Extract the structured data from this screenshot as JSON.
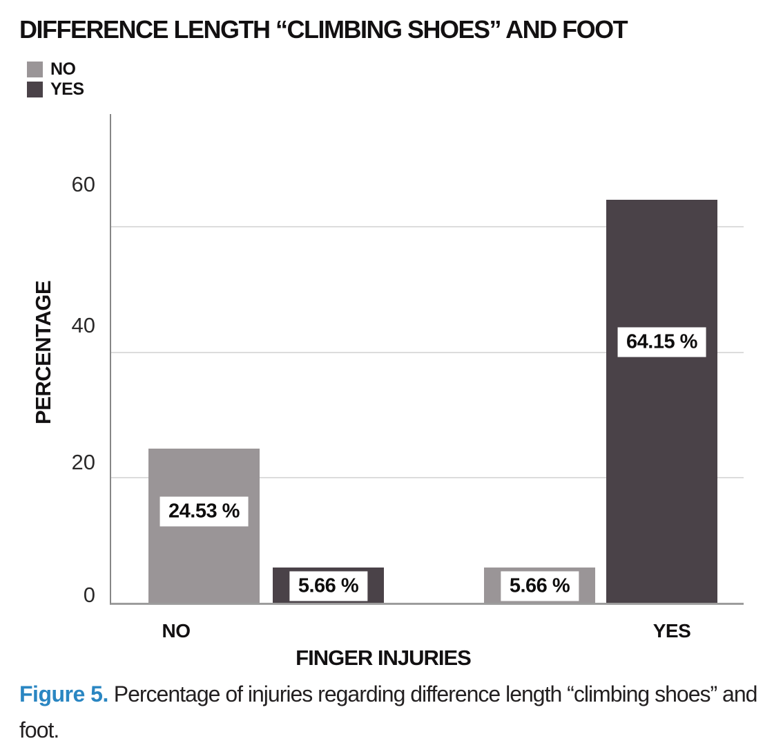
{
  "figure": {
    "caption_label": "Figure 5.",
    "caption_text": " Percentage of injuries regarding difference length “climbing shoes” and foot.",
    "accent_color": "#2a86c2"
  },
  "legend": {
    "items": [
      {
        "label": "NO",
        "color": "#9a9597"
      },
      {
        "label": "YES",
        "color": "#4a4248"
      }
    ]
  },
  "chart_data": {
    "type": "bar",
    "title": "DIFFERENCE LENGTH “CLIMBING SHOES” AND FOOT",
    "xlabel": "FINGER INJURIES",
    "ylabel": "PERCENTAGE",
    "categories": [
      "NO",
      "YES"
    ],
    "series": [
      {
        "name": "NO",
        "color": "#9a9597",
        "values": [
          24.53,
          5.66
        ]
      },
      {
        "name": "YES",
        "color": "#4a4248",
        "values": [
          5.66,
          64.15
        ]
      }
    ],
    "value_labels": [
      [
        "24.53 %",
        "5.66 %"
      ],
      [
        "5.66 %",
        "64.15 %"
      ]
    ],
    "yticks": [
      "0",
      "20",
      "40",
      "60"
    ],
    "ytick_values": [
      0,
      20,
      40,
      60
    ],
    "ylim": [
      0,
      77.8
    ],
    "grid": true,
    "grid_color": "#dcdcdc",
    "axis_color": "#868686",
    "legend_position": "top-left"
  }
}
